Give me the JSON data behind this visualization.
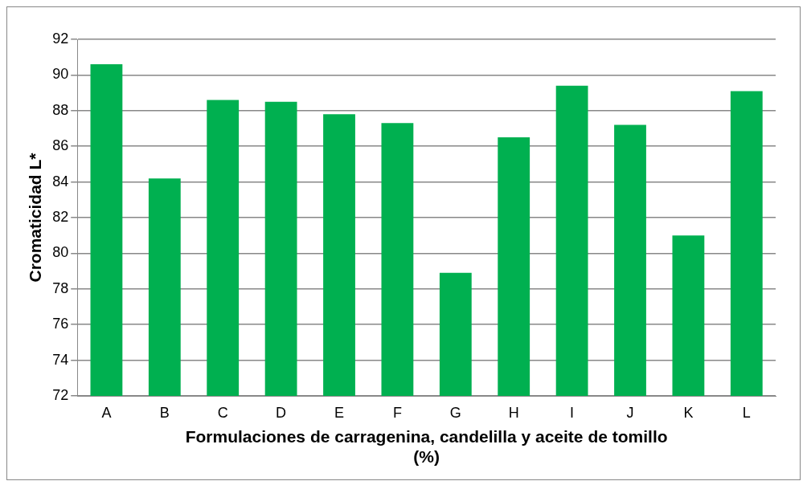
{
  "chart_data": {
    "type": "bar",
    "xlabel": "Formulaciones de carragenina, candelilla y aceite de tomillo (%)",
    "ylabel": "Cromaticidad L*",
    "categories": [
      "A",
      "B",
      "C",
      "D",
      "E",
      "F",
      "G",
      "H",
      "I",
      "J",
      "K",
      "L"
    ],
    "values": [
      90.6,
      84.2,
      88.6,
      88.5,
      87.8,
      87.3,
      78.9,
      86.5,
      89.4,
      87.2,
      81.0,
      89.1
    ],
    "color": "#00b050",
    "ylim": [
      72,
      92
    ],
    "yticks": [
      72,
      74,
      76,
      78,
      80,
      82,
      84,
      86,
      88,
      90,
      92
    ],
    "grid": "y"
  }
}
